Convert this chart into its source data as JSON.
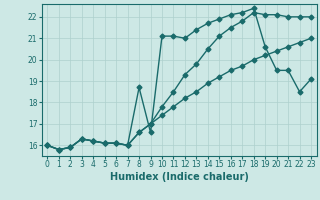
{
  "xlabel": "Humidex (Indice chaleur)",
  "ylabel": "",
  "bg_color": "#cde8e5",
  "line_color": "#1a6b6b",
  "grid_color": "#aed0cd",
  "xlim": [
    -0.5,
    23.5
  ],
  "ylim": [
    15.5,
    22.6
  ],
  "xticks": [
    0,
    1,
    2,
    3,
    4,
    5,
    6,
    7,
    8,
    9,
    10,
    11,
    12,
    13,
    14,
    15,
    16,
    17,
    18,
    19,
    20,
    21,
    22,
    23
  ],
  "yticks": [
    16,
    17,
    18,
    19,
    20,
    21,
    22
  ],
  "line1_x": [
    0,
    1,
    2,
    3,
    4,
    5,
    6,
    7,
    8,
    9,
    10,
    11,
    12,
    13,
    14,
    15,
    16,
    17,
    18,
    19,
    20,
    21,
    22,
    23
  ],
  "line1_y": [
    16.0,
    15.8,
    15.9,
    16.3,
    16.2,
    16.1,
    16.1,
    16.0,
    16.6,
    17.0,
    17.4,
    17.8,
    18.2,
    18.5,
    18.9,
    19.2,
    19.5,
    19.7,
    20.0,
    20.2,
    20.4,
    20.6,
    20.8,
    21.0
  ],
  "line2_x": [
    0,
    1,
    2,
    3,
    4,
    5,
    6,
    7,
    8,
    9,
    10,
    11,
    12,
    13,
    14,
    15,
    16,
    17,
    18,
    19,
    20,
    21,
    22,
    23
  ],
  "line2_y": [
    16.0,
    15.8,
    15.9,
    16.3,
    16.2,
    16.1,
    16.1,
    16.0,
    16.6,
    17.0,
    17.8,
    18.5,
    19.3,
    19.8,
    20.5,
    21.1,
    21.5,
    21.8,
    22.2,
    22.1,
    22.1,
    22.0,
    22.0,
    22.0
  ],
  "line3_x": [
    0,
    1,
    2,
    3,
    4,
    5,
    6,
    7,
    8,
    9,
    10,
    11,
    12,
    13,
    14,
    15,
    16,
    17,
    18,
    19,
    20,
    21,
    22,
    23
  ],
  "line3_y": [
    16.0,
    15.8,
    15.9,
    16.3,
    16.2,
    16.1,
    16.1,
    16.0,
    18.7,
    16.6,
    21.1,
    21.1,
    21.0,
    21.4,
    21.7,
    21.9,
    22.1,
    22.2,
    22.4,
    20.6,
    19.5,
    19.5,
    18.5,
    19.1
  ],
  "marker": "D",
  "markersize": 2.5,
  "linewidth": 1.0,
  "tick_fontsize": 5.5,
  "xlabel_fontsize": 7
}
